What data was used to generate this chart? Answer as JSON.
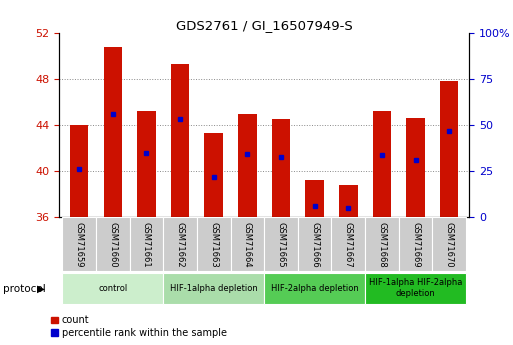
{
  "title": "GDS2761 / GI_16507949-S",
  "samples": [
    "GSM71659",
    "GSM71660",
    "GSM71661",
    "GSM71662",
    "GSM71663",
    "GSM71664",
    "GSM71665",
    "GSM71666",
    "GSM71667",
    "GSM71668",
    "GSM71669",
    "GSM71670"
  ],
  "bar_bottoms": [
    36,
    36,
    36,
    36,
    36,
    36,
    36,
    36,
    36,
    36,
    36,
    36
  ],
  "bar_tops": [
    44.0,
    50.8,
    45.2,
    49.3,
    43.3,
    45.0,
    44.5,
    39.2,
    38.8,
    45.2,
    44.6,
    47.8
  ],
  "percentile_values": [
    40.2,
    45.0,
    41.6,
    44.5,
    39.5,
    41.5,
    41.2,
    37.0,
    36.8,
    41.4,
    41.0,
    43.5
  ],
  "bar_color": "#cc1100",
  "percentile_color": "#0000cc",
  "ylim_left": [
    36,
    52
  ],
  "ylim_right": [
    0,
    100
  ],
  "yticks_left": [
    36,
    40,
    44,
    48,
    52
  ],
  "yticks_right": [
    0,
    25,
    50,
    75,
    100
  ],
  "ytick_labels_right": [
    "0",
    "25",
    "50",
    "75",
    "100%"
  ],
  "grid_lines": [
    40,
    44,
    48
  ],
  "protocols": [
    {
      "label": "control",
      "start": 0,
      "end": 3,
      "color": "#cceecc"
    },
    {
      "label": "HIF-1alpha depletion",
      "start": 3,
      "end": 6,
      "color": "#aaddaa"
    },
    {
      "label": "HIF-2alpha depletion",
      "start": 6,
      "end": 9,
      "color": "#55cc55"
    },
    {
      "label": "HIF-1alpha HIF-2alpha\ndepletion",
      "start": 9,
      "end": 12,
      "color": "#22bb22"
    }
  ],
  "protocol_label": "protocol",
  "legend_count_label": "count",
  "legend_percentile_label": "percentile rank within the sample",
  "background_color": "#ffffff",
  "plot_bg_color": "#ffffff",
  "tick_area_color": "#cccccc",
  "left_tick_color": "#cc1100",
  "right_tick_color": "#0000cc",
  "bar_width": 0.55
}
